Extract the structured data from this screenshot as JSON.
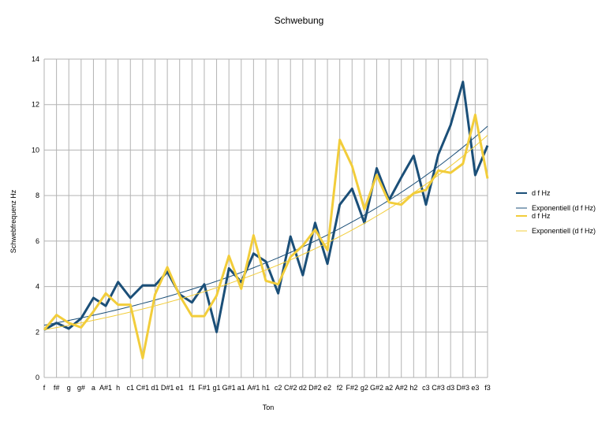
{
  "chart_data": {
    "type": "line",
    "title": "Schwebung",
    "xlabel": "Ton",
    "ylabel": "Schwebfrequenz Hz",
    "ylim": [
      0,
      14
    ],
    "yticks": [
      0,
      2,
      4,
      6,
      8,
      10,
      12,
      14
    ],
    "grid": true,
    "legend_position": "right",
    "categories": [
      "f",
      "f#",
      "g",
      "g#",
      "a",
      "A#1",
      "h",
      "c1",
      "C#1",
      "d1",
      "D#1",
      "e1",
      "f1",
      "F#1",
      "g1",
      "G#1",
      "a1",
      "A#1",
      "h1",
      "c2",
      "C#2",
      "d2",
      "D#2",
      "e2",
      "f2",
      "F#2",
      "g2",
      "G#2",
      "a2",
      "A#2",
      "h2",
      "c3",
      "C#3",
      "d3",
      "D#3",
      "e3",
      "f3"
    ],
    "series": [
      {
        "name": "d f Hz",
        "color": "#1b4f78",
        "values": [
          2.1,
          2.4,
          2.15,
          2.6,
          3.5,
          3.15,
          4.2,
          3.5,
          4.05,
          4.05,
          4.65,
          3.65,
          3.3,
          4.1,
          2.0,
          4.8,
          4.2,
          5.45,
          5.1,
          3.7,
          6.2,
          4.5,
          6.8,
          5.0,
          7.6,
          8.3,
          6.8,
          9.2,
          7.8,
          8.8,
          9.75,
          7.6,
          9.8,
          11.1,
          13.0,
          8.9,
          10.2
        ]
      },
      {
        "name": "Exponentiell (d f Hz)",
        "color": "#1b4f78",
        "trend": {
          "start": 2.3,
          "end": 11.05
        }
      },
      {
        "name": "d f Hz",
        "color": "#f2cd3b",
        "values": [
          2.1,
          2.75,
          2.4,
          2.2,
          2.9,
          3.7,
          3.2,
          3.2,
          0.85,
          3.65,
          4.85,
          3.6,
          2.7,
          2.7,
          3.6,
          5.35,
          3.9,
          6.25,
          4.25,
          4.1,
          5.3,
          5.8,
          6.5,
          5.6,
          10.45,
          9.3,
          7.4,
          8.9,
          7.7,
          7.6,
          8.1,
          8.25,
          9.1,
          9.0,
          9.4,
          11.55,
          8.75
        ]
      },
      {
        "name": "Exponentiell (d f Hz)",
        "color": "#f2cd3b",
        "trend": {
          "start": 2.1,
          "end": 10.65
        }
      }
    ]
  }
}
